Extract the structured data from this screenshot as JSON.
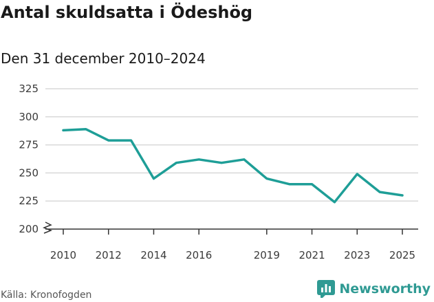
{
  "header": {
    "title": "Antal skuldsatta i Ödeshög",
    "subtitle": "Den 31 december 2010–2024"
  },
  "footer": {
    "source": "Källa: Kronofogden",
    "brand": "Newsworthy"
  },
  "colors": {
    "line": "#1e9e97",
    "grid": "#d9d9d9",
    "axis": "#333333",
    "brand": "#2f9a93"
  },
  "chart_data": {
    "type": "line",
    "title": "Antal skuldsatta i Ödeshög",
    "subtitle": "Den 31 december 2010–2024",
    "xlabel": "",
    "ylabel": "",
    "ylim": [
      200,
      325
    ],
    "xlim": [
      2010,
      2025
    ],
    "y_ticks": [
      200,
      225,
      250,
      275,
      300,
      325
    ],
    "x_ticks": [
      2010,
      2012,
      2014,
      2016,
      2019,
      2021,
      2023,
      2025
    ],
    "axis_break": true,
    "grid": true,
    "series": [
      {
        "name": "Antal skuldsatta",
        "x": [
          2010,
          2011,
          2012,
          2013,
          2014,
          2015,
          2016,
          2017,
          2018,
          2019,
          2020,
          2021,
          2022,
          2023,
          2024,
          2025
        ],
        "values": [
          288,
          289,
          279,
          279,
          245,
          259,
          262,
          259,
          262,
          245,
          240,
          240,
          224,
          249,
          233,
          230
        ]
      }
    ]
  }
}
